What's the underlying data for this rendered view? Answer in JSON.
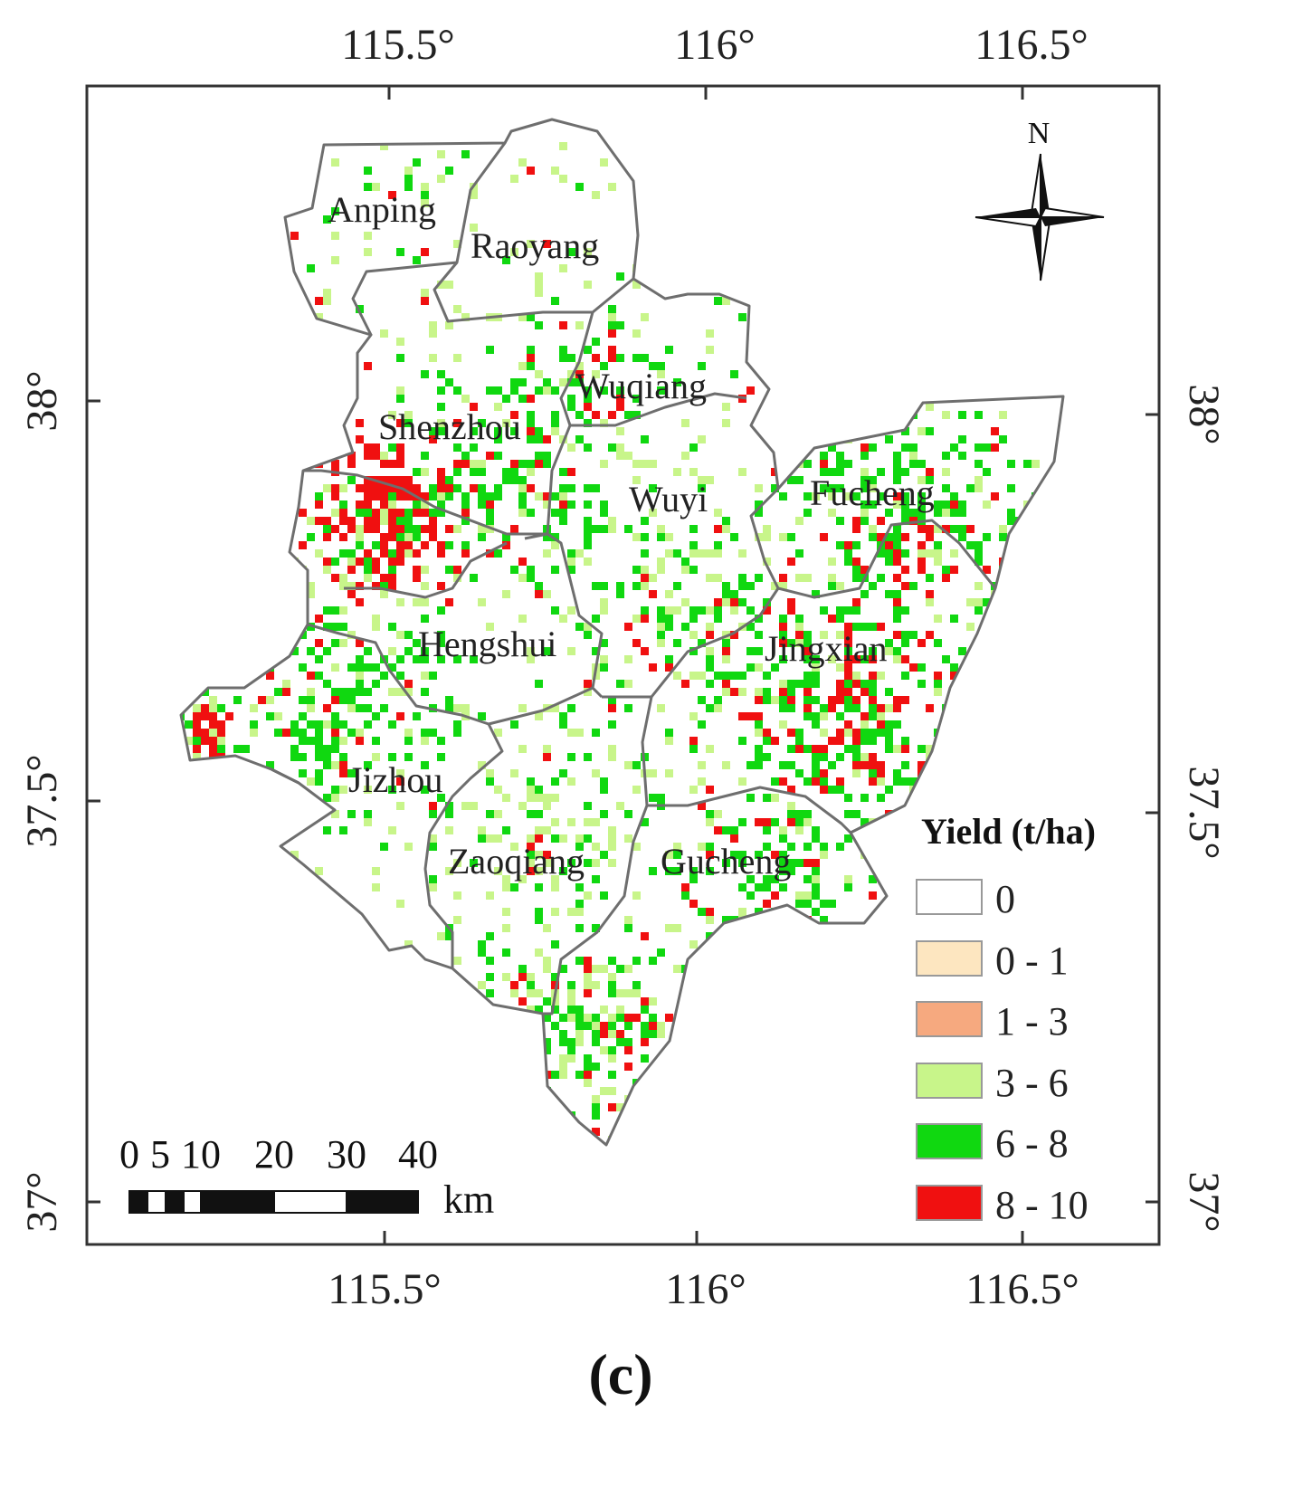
{
  "map": {
    "top_ticks": [
      "115.5°",
      "116°",
      "116.5°"
    ],
    "bottom_ticks": [
      "115.5°",
      "116°",
      "116.5°"
    ],
    "left_ticks": [
      "38°",
      "37.5°",
      "37°"
    ],
    "right_ticks": [
      "38°",
      "37.5°",
      "37°"
    ],
    "north_label": "N",
    "counties": [
      {
        "name": "Anping"
      },
      {
        "name": "Raoyang"
      },
      {
        "name": "Wuqiang"
      },
      {
        "name": "Shenzhou"
      },
      {
        "name": "Wuyi"
      },
      {
        "name": "Fucheng"
      },
      {
        "name": "Hengshui"
      },
      {
        "name": "Jingxian"
      },
      {
        "name": "Jizhou"
      },
      {
        "name": "Zaoqiang"
      },
      {
        "name": "Gucheng"
      }
    ],
    "legend": {
      "title": "Yield (t/ha)",
      "classes": [
        {
          "label": "0",
          "color": "#ffffff"
        },
        {
          "label": "0 - 1",
          "color": "#fde6c0"
        },
        {
          "label": "1 - 3",
          "color": "#f6a97f"
        },
        {
          "label": "3 - 6",
          "color": "#c8f58a"
        },
        {
          "label": "6 - 8",
          "color": "#10d810"
        },
        {
          "label": "8 - 10",
          "color": "#f01010"
        }
      ]
    },
    "scale_bar": {
      "ticks": [
        "0",
        "5",
        "10",
        "20",
        "30",
        "40"
      ],
      "unit": "km"
    },
    "panel_label": "(c)"
  }
}
